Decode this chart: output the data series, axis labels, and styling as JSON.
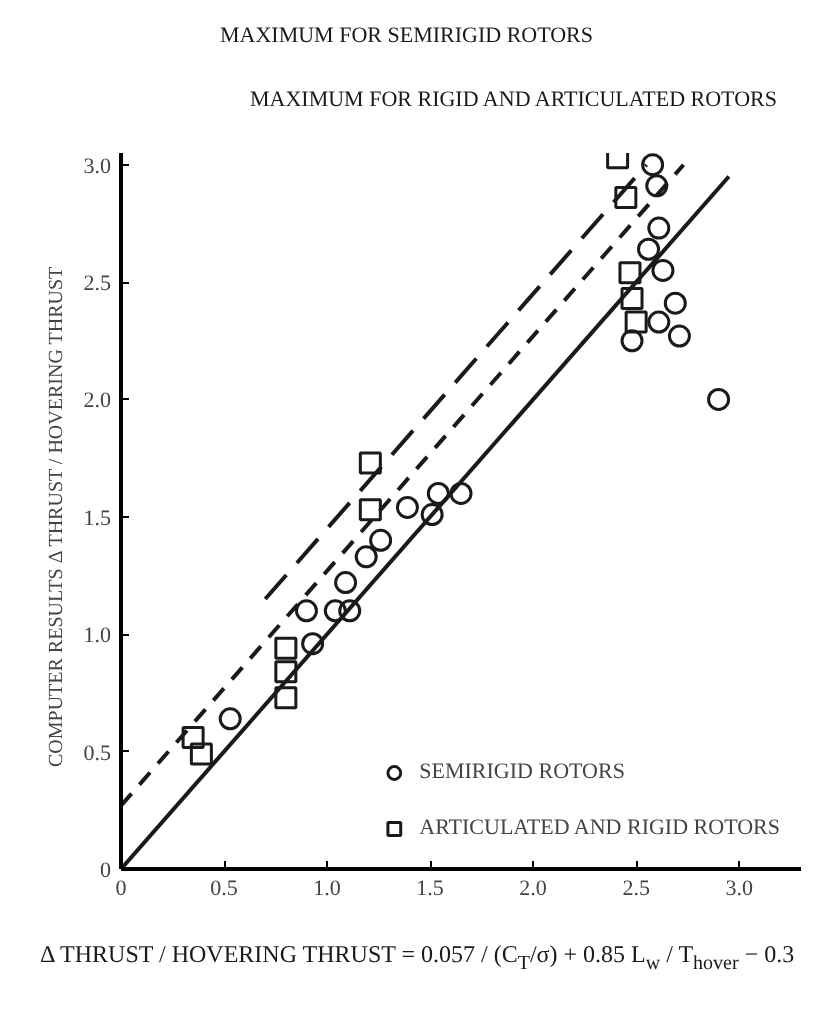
{
  "chart_data": {
    "type": "scatter",
    "xlabel": "Δ THRUST / HOVERING THRUST = 0.057 / (C$_{T}$/σ) + 0.85 L$_{w}$ / T$_{hover}$ − 0.3",
    "ylabel": "COMPUTER RESULTS   Δ THRUST / HOVERING THRUST",
    "xlim": [
      0,
      3.3
    ],
    "ylim": [
      0,
      3.05
    ],
    "xticks": [
      0,
      {
        "value": 0.5,
        "label": "0.5"
      },
      {
        "value": 1,
        "label": "1.0"
      },
      {
        "value": 1.5,
        "label": "1.5"
      },
      {
        "value": 2,
        "label": "2.0"
      },
      {
        "value": 2.5,
        "label": "2.5"
      },
      {
        "value": 3,
        "label": "3.0"
      }
    ],
    "yticks": [
      0,
      {
        "value": 0.5,
        "label": "0.5"
      },
      {
        "value": 1,
        "label": "1.0"
      },
      {
        "value": 1.5,
        "label": "1.5"
      },
      {
        "value": 2,
        "label": "2.0"
      },
      {
        "value": 2.5,
        "label": "2.5"
      },
      {
        "value": 3,
        "label": "3.0"
      }
    ],
    "grid": false,
    "legend": "bottom right",
    "series": [
      {
        "name": "SEMIRIGID ROTORS",
        "color": "#1a1a1a",
        "marker": "circle",
        "x": [
          0.53,
          0.9,
          0.93,
          1.04,
          1.09,
          1.11,
          1.19,
          1.26,
          1.39,
          1.51,
          1.54,
          1.65,
          2.58,
          2.6,
          2.61,
          2.56,
          2.63,
          2.69,
          2.61,
          2.71,
          2.48,
          2.9
        ],
        "values": [
          0.64,
          1.1,
          0.96,
          1.1,
          1.22,
          1.1,
          1.33,
          1.4,
          1.54,
          1.51,
          1.6,
          1.6,
          3.0,
          2.91,
          2.73,
          2.64,
          2.55,
          2.41,
          2.33,
          2.27,
          2.25,
          2.0
        ]
      },
      {
        "name": "ARTICULATED AND RIGID ROTORS",
        "color": "#1a1a1a",
        "marker": "square",
        "x": [
          0.35,
          0.39,
          0.8,
          0.8,
          0.8,
          1.21,
          1.21,
          2.41,
          2.45,
          2.47,
          2.48,
          2.5
        ],
        "values": [
          0.56,
          0.49,
          0.94,
          0.84,
          0.73,
          1.73,
          1.53,
          3.03,
          2.86,
          2.54,
          2.43,
          2.33
        ]
      },
      {
        "type": "line",
        "color": "#1a1a1a",
        "line_style": "solid",
        "x": [
          0,
          2.95
        ],
        "values": [
          0,
          2.95
        ]
      },
      {
        "type": "line",
        "color": "#1a1a1a",
        "line_style": "dashed",
        "x": [
          0,
          2.73
        ],
        "values": [
          0.27,
          3.0
        ]
      },
      {
        "type": "line",
        "color": "#1a1a1a",
        "line_style": "longdash",
        "x": [
          0.7,
          2.55
        ],
        "values": [
          1.15,
          3.0
        ]
      }
    ],
    "annotations": [
      "MAXIMUM FOR SEMIRIGID ROTORS",
      "MAXIMUM FOR RIGID AND ARTICULATED ROTORS"
    ]
  }
}
